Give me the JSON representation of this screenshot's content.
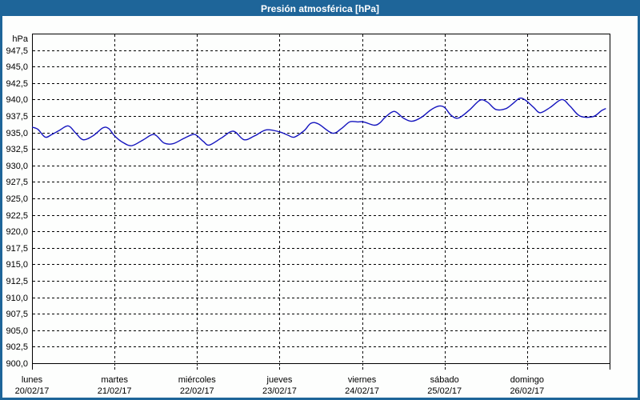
{
  "window": {
    "title": "Presión atmosférica [hPa]"
  },
  "colors": {
    "frame": "#1E6599",
    "title_text": "#FFFFFF",
    "background": "#FDFEFD",
    "plot_border": "#000000",
    "grid": "#000000",
    "axis_text": "#000000",
    "line": "#1414BE"
  },
  "chart_data": {
    "type": "line",
    "title": "Presión atmosférica [hPa]",
    "ylabel": "hPa",
    "xlabel": "",
    "ylim": [
      900,
      950
    ],
    "ytick_min": 900.0,
    "ytick_max": 947.5,
    "ytick_step": 2.5,
    "decimal_separator": ",",
    "grid": "dashed",
    "legend": "none",
    "xlim_days": [
      0,
      7
    ],
    "x_ticks": [
      {
        "day": "lunes",
        "date": "20/02/17"
      },
      {
        "day": "martes",
        "date": "21/02/17"
      },
      {
        "day": "miércoles",
        "date": "22/02/17"
      },
      {
        "day": "jueves",
        "date": "23/02/17"
      },
      {
        "day": "viernes",
        "date": "24/02/17"
      },
      {
        "day": "sábado",
        "date": "25/02/17"
      },
      {
        "day": "domingo",
        "date": "26/02/17"
      }
    ],
    "series": [
      {
        "name": "Presión atmosférica",
        "unit": "hPa",
        "points": [
          [
            0.0,
            935.8
          ],
          [
            0.07,
            935.5
          ],
          [
            0.16,
            934.3
          ],
          [
            0.24,
            934.7
          ],
          [
            0.33,
            935.3
          ],
          [
            0.44,
            936.0
          ],
          [
            0.53,
            934.9
          ],
          [
            0.62,
            933.9
          ],
          [
            0.74,
            934.5
          ],
          [
            0.86,
            935.7
          ],
          [
            0.93,
            935.6
          ],
          [
            1.0,
            934.5
          ],
          [
            1.1,
            933.5
          ],
          [
            1.21,
            933.0
          ],
          [
            1.35,
            933.9
          ],
          [
            1.48,
            934.7
          ],
          [
            1.6,
            933.4
          ],
          [
            1.71,
            933.3
          ],
          [
            1.84,
            934.1
          ],
          [
            1.95,
            934.7
          ],
          [
            2.0,
            934.5
          ],
          [
            2.08,
            933.6
          ],
          [
            2.15,
            933.1
          ],
          [
            2.3,
            934.2
          ],
          [
            2.44,
            935.2
          ],
          [
            2.57,
            933.9
          ],
          [
            2.7,
            934.5
          ],
          [
            2.84,
            935.4
          ],
          [
            3.0,
            935.1
          ],
          [
            3.1,
            934.6
          ],
          [
            3.18,
            934.3
          ],
          [
            3.3,
            935.3
          ],
          [
            3.38,
            936.4
          ],
          [
            3.47,
            936.3
          ],
          [
            3.64,
            934.9
          ],
          [
            3.75,
            935.6
          ],
          [
            3.85,
            936.6
          ],
          [
            3.95,
            936.6
          ],
          [
            4.02,
            936.6
          ],
          [
            4.15,
            936.1
          ],
          [
            4.22,
            936.5
          ],
          [
            4.28,
            937.3
          ],
          [
            4.39,
            938.2
          ],
          [
            4.5,
            937.2
          ],
          [
            4.6,
            936.7
          ],
          [
            4.72,
            937.3
          ],
          [
            4.83,
            938.4
          ],
          [
            4.93,
            939.0
          ],
          [
            5.0,
            938.8
          ],
          [
            5.08,
            937.6
          ],
          [
            5.17,
            937.2
          ],
          [
            5.3,
            938.4
          ],
          [
            5.43,
            939.9
          ],
          [
            5.52,
            939.6
          ],
          [
            5.62,
            938.5
          ],
          [
            5.74,
            938.6
          ],
          [
            5.83,
            939.4
          ],
          [
            5.91,
            940.2
          ],
          [
            5.98,
            939.9
          ],
          [
            6.08,
            938.8
          ],
          [
            6.16,
            938.0
          ],
          [
            6.28,
            938.8
          ],
          [
            6.42,
            940.0
          ],
          [
            6.52,
            939.0
          ],
          [
            6.64,
            937.5
          ],
          [
            6.8,
            937.4
          ],
          [
            6.9,
            938.3
          ],
          [
            6.95,
            938.6
          ]
        ]
      }
    ]
  }
}
